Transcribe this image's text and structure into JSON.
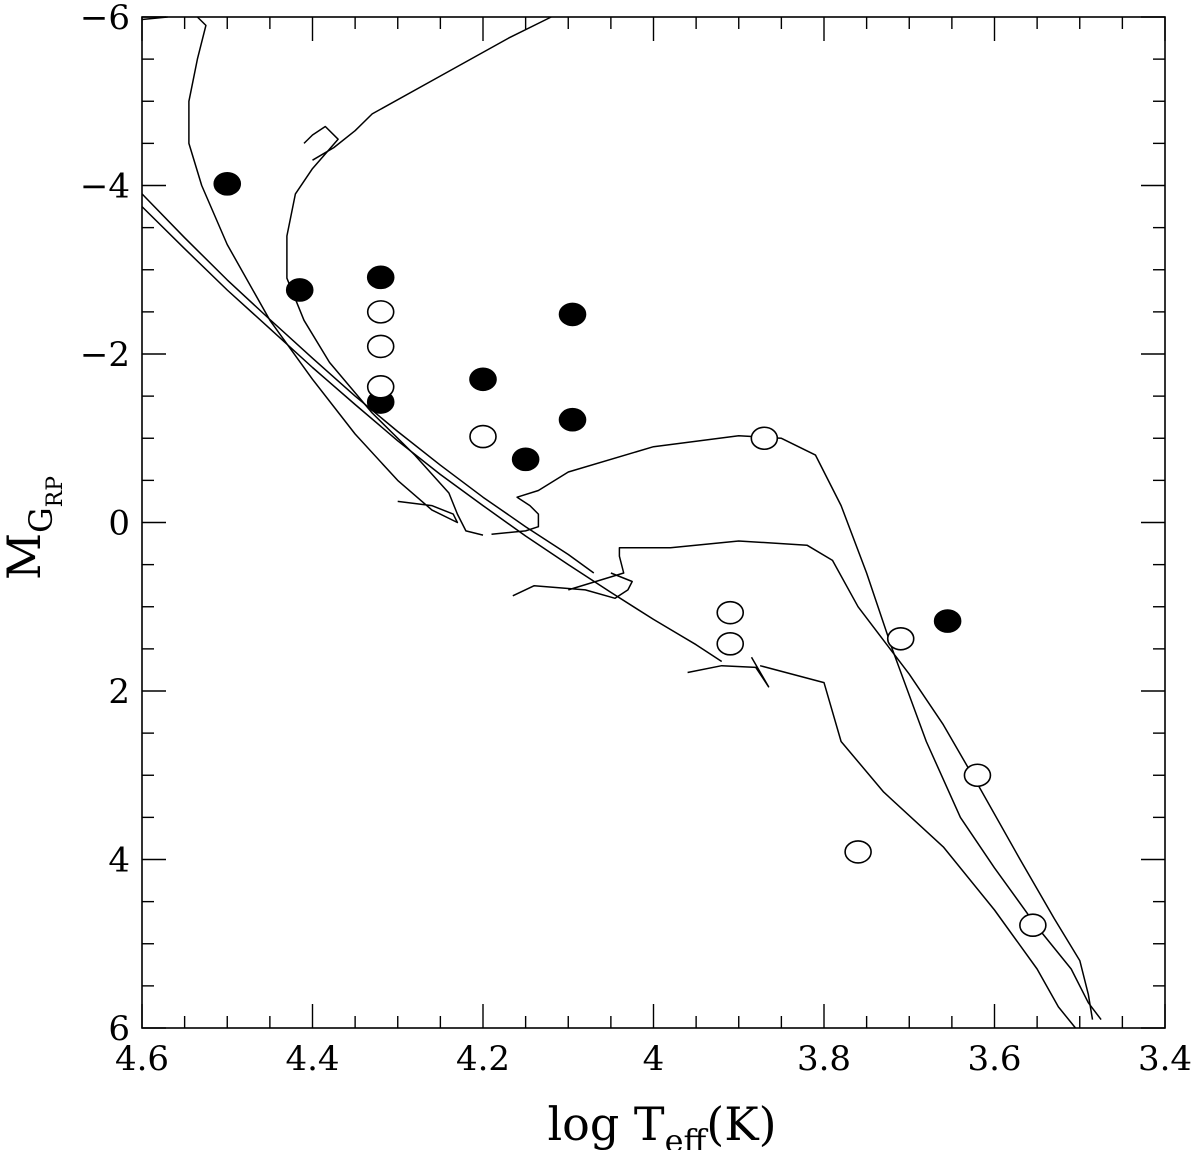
{
  "chart_data": {
    "type": "scatter",
    "title": "",
    "xlabel": {
      "main": "log  T",
      "sub": "eff",
      "unit": "(K)"
    },
    "ylabel": {
      "main": "M",
      "sub": "G",
      "subsub": "RP"
    },
    "xlim": [
      4.6,
      3.4
    ],
    "ylim": [
      6,
      -6
    ],
    "x_ticks": [
      "4.6",
      "4.4",
      "4.2",
      "4",
      "3.8",
      "3.6",
      "3.4"
    ],
    "y_ticks": [
      "6",
      "4",
      "2",
      "0",
      "−2",
      "−4",
      "−6"
    ],
    "grid": false,
    "colors": {
      "filled": "#000000",
      "open": "#000000",
      "line": "#000000"
    },
    "series": [
      {
        "marker": "filled-circle",
        "points": [
          [
            4.5,
            -4.02
          ],
          [
            4.415,
            -2.76
          ],
          [
            4.32,
            -2.91
          ],
          [
            4.32,
            -1.43
          ],
          [
            4.2,
            -1.7
          ],
          [
            4.15,
            -0.75
          ],
          [
            4.095,
            -2.47
          ],
          [
            4.095,
            -1.22
          ],
          [
            3.655,
            1.17
          ]
        ]
      },
      {
        "marker": "open-circle",
        "points": [
          [
            4.32,
            -2.5
          ],
          [
            4.32,
            -2.09
          ],
          [
            4.32,
            -1.61
          ],
          [
            4.2,
            -1.02
          ],
          [
            3.87,
            -1.0
          ],
          [
            3.91,
            1.07
          ],
          [
            3.91,
            1.44
          ],
          [
            3.71,
            1.38
          ],
          [
            3.62,
            3.0
          ],
          [
            3.76,
            3.91
          ],
          [
            3.555,
            4.78
          ]
        ]
      }
    ],
    "tracks": [
      [
        [
          4.6,
          -3.75
        ],
        [
          4.55,
          -3.25
        ],
        [
          4.5,
          -2.76
        ],
        [
          4.45,
          -2.3
        ],
        [
          4.4,
          -1.84
        ],
        [
          4.35,
          -1.4
        ],
        [
          4.3,
          -0.97
        ],
        [
          4.25,
          -0.57
        ],
        [
          4.2,
          -0.2
        ],
        [
          4.15,
          0.16
        ],
        [
          4.1,
          0.5
        ],
        [
          4.05,
          0.83
        ],
        [
          4.0,
          1.15
        ],
        [
          3.95,
          1.45
        ],
        [
          3.92,
          1.65
        ]
      ],
      [
        [
          4.6,
          -3.9
        ],
        [
          4.55,
          -3.38
        ],
        [
          4.5,
          -2.88
        ],
        [
          4.45,
          -2.41
        ],
        [
          4.4,
          -1.95
        ],
        [
          4.35,
          -1.5
        ],
        [
          4.3,
          -1.08
        ],
        [
          4.25,
          -0.68
        ],
        [
          4.2,
          -0.3
        ],
        [
          4.15,
          0.05
        ],
        [
          4.1,
          0.38
        ],
        [
          4.07,
          0.6
        ]
      ],
      [
        [
          4.535,
          -6.0
        ],
        [
          4.525,
          -5.9
        ],
        [
          4.535,
          -5.5
        ],
        [
          4.545,
          -5.0
        ],
        [
          4.545,
          -4.5
        ],
        [
          4.53,
          -4.0
        ],
        [
          4.5,
          -3.3
        ],
        [
          4.45,
          -2.4
        ],
        [
          4.4,
          -1.7
        ],
        [
          4.35,
          -1.05
        ],
        [
          4.3,
          -0.5
        ],
        [
          4.26,
          -0.15
        ],
        [
          4.23,
          0.0
        ],
        [
          4.235,
          -0.1
        ],
        [
          4.26,
          -0.2
        ],
        [
          4.3,
          -0.25
        ]
      ],
      [
        [
          4.6,
          -5.97
        ],
        [
          4.57,
          -6.0
        ]
      ],
      [
        [
          4.4,
          -4.3
        ],
        [
          4.375,
          -4.45
        ],
        [
          4.35,
          -4.65
        ],
        [
          4.33,
          -4.85
        ],
        [
          4.25,
          -5.3
        ],
        [
          4.17,
          -5.75
        ],
        [
          4.12,
          -6.0
        ]
      ],
      [
        [
          4.41,
          -4.5
        ],
        [
          4.4,
          -4.6
        ],
        [
          4.385,
          -4.7
        ],
        [
          4.37,
          -4.55
        ],
        [
          4.4,
          -4.2
        ],
        [
          4.42,
          -3.9
        ],
        [
          4.43,
          -3.4
        ],
        [
          4.43,
          -2.9
        ],
        [
          4.41,
          -2.4
        ],
        [
          4.38,
          -1.9
        ],
        [
          4.33,
          -1.3
        ],
        [
          4.28,
          -0.8
        ],
        [
          4.24,
          -0.35
        ],
        [
          4.23,
          -0.1
        ],
        [
          4.22,
          0.1
        ],
        [
          4.2,
          0.15
        ]
      ],
      [
        [
          4.19,
          0.14
        ],
        [
          4.15,
          0.1
        ],
        [
          4.135,
          0.05
        ],
        [
          4.135,
          -0.1
        ],
        [
          4.145,
          -0.2
        ],
        [
          4.16,
          -0.3
        ],
        [
          4.135,
          -0.38
        ],
        [
          4.1,
          -0.6
        ],
        [
          4.0,
          -0.9
        ],
        [
          3.9,
          -1.03
        ],
        [
          3.85,
          -1.0
        ],
        [
          3.81,
          -0.8
        ],
        [
          3.78,
          -0.2
        ],
        [
          3.75,
          0.6
        ],
        [
          3.72,
          1.5
        ],
        [
          3.68,
          2.6
        ],
        [
          3.64,
          3.5
        ],
        [
          3.6,
          4.1
        ],
        [
          3.55,
          4.8
        ],
        [
          3.51,
          5.3
        ],
        [
          3.49,
          5.7
        ],
        [
          3.475,
          5.9
        ]
      ],
      [
        [
          4.1,
          0.8
        ],
        [
          4.035,
          0.6
        ],
        [
          4.04,
          0.4
        ],
        [
          4.04,
          0.3
        ],
        [
          3.98,
          0.3
        ],
        [
          3.9,
          0.22
        ],
        [
          3.82,
          0.27
        ],
        [
          3.79,
          0.45
        ],
        [
          3.76,
          1.0
        ],
        [
          3.7,
          1.8
        ],
        [
          3.66,
          2.4
        ],
        [
          3.62,
          3.1
        ],
        [
          3.57,
          4.0
        ],
        [
          3.53,
          4.7
        ],
        [
          3.5,
          5.2
        ],
        [
          3.49,
          5.6
        ],
        [
          3.485,
          5.9
        ]
      ],
      [
        [
          4.165,
          0.87
        ],
        [
          4.14,
          0.75
        ],
        [
          4.08,
          0.8
        ],
        [
          4.045,
          0.9
        ],
        [
          4.03,
          0.8
        ],
        [
          4.025,
          0.7
        ],
        [
          4.05,
          0.6
        ]
      ],
      [
        [
          3.96,
          1.78
        ],
        [
          3.92,
          1.7
        ],
        [
          3.88,
          1.72
        ],
        [
          3.865,
          1.95
        ],
        [
          3.885,
          1.6
        ]
      ],
      [
        [
          3.875,
          1.7
        ],
        [
          3.8,
          1.9
        ],
        [
          3.78,
          2.6
        ],
        [
          3.73,
          3.2
        ],
        [
          3.66,
          3.85
        ],
        [
          3.6,
          4.6
        ],
        [
          3.55,
          5.3
        ],
        [
          3.525,
          5.75
        ],
        [
          3.505,
          6.0
        ]
      ]
    ]
  }
}
